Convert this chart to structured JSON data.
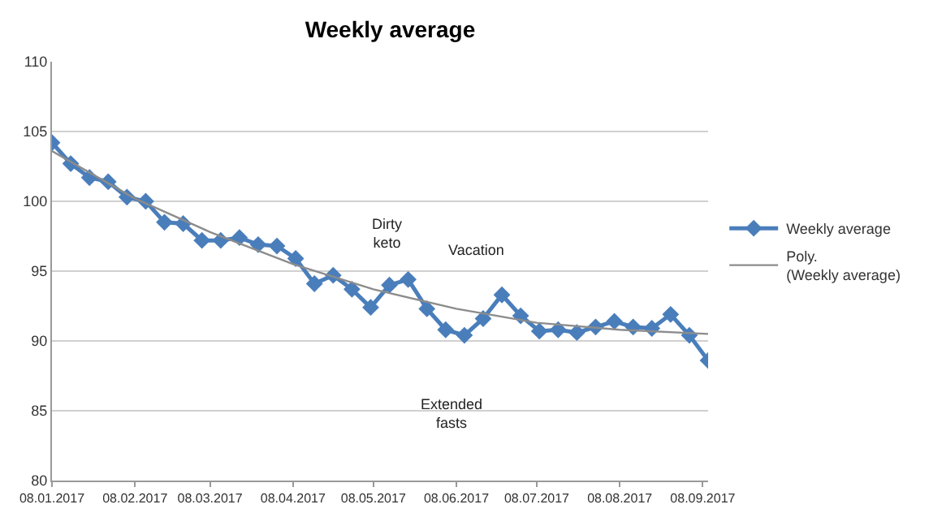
{
  "chart_data": {
    "type": "line",
    "title": "Weekly average",
    "x": [
      "2017-01-08",
      "2017-01-15",
      "2017-01-22",
      "2017-01-29",
      "2017-02-05",
      "2017-02-12",
      "2017-02-19",
      "2017-02-26",
      "2017-03-05",
      "2017-03-12",
      "2017-03-19",
      "2017-03-26",
      "2017-04-02",
      "2017-04-09",
      "2017-04-16",
      "2017-04-23",
      "2017-04-30",
      "2017-05-07",
      "2017-05-14",
      "2017-05-21",
      "2017-05-28",
      "2017-06-04",
      "2017-06-11",
      "2017-06-18",
      "2017-06-25",
      "2017-07-02",
      "2017-07-09",
      "2017-07-16",
      "2017-07-23",
      "2017-07-30",
      "2017-08-06",
      "2017-08-13",
      "2017-08-20",
      "2017-08-27",
      "2017-09-03",
      "2017-09-10"
    ],
    "series": [
      {
        "name": "Weekly average",
        "color": "#4a7ebb",
        "marker": "diamond",
        "values": [
          104.2,
          102.7,
          101.7,
          101.4,
          100.3,
          100.0,
          98.5,
          98.4,
          97.2,
          97.2,
          97.4,
          96.9,
          96.8,
          95.9,
          94.1,
          94.7,
          93.7,
          92.4,
          94.0,
          94.4,
          92.3,
          90.8,
          90.4,
          91.6,
          93.3,
          91.8,
          90.7,
          90.8,
          90.6,
          91.0,
          91.4,
          91.0,
          90.9,
          91.9,
          90.4,
          88.6
        ]
      },
      {
        "name": "Poly. (Weekly average)",
        "color": "#8c8c8c",
        "marker": "none",
        "x": [
          "2017-01-08",
          "2017-02-08",
          "2017-03-08",
          "2017-04-08",
          "2017-05-08",
          "2017-06-08",
          "2017-07-08",
          "2017-08-08",
          "2017-09-10"
        ],
        "values": [
          103.6,
          100.2,
          97.8,
          95.5,
          93.7,
          92.3,
          91.3,
          90.8,
          90.5
        ]
      }
    ],
    "xlim": [
      "2017-01-08",
      "2017-09-10"
    ],
    "xticks": [
      {
        "value": "2017-01-08",
        "label": "08.01.2017"
      },
      {
        "value": "2017-02-08",
        "label": "08.02.2017"
      },
      {
        "value": "2017-03-08",
        "label": "08.03.2017"
      },
      {
        "value": "2017-04-08",
        "label": "08.04.2017"
      },
      {
        "value": "2017-05-08",
        "label": "08.05.2017"
      },
      {
        "value": "2017-06-08",
        "label": "08.06.2017"
      },
      {
        "value": "2017-07-08",
        "label": "08.07.2017"
      },
      {
        "value": "2017-08-08",
        "label": "08.08.2017"
      },
      {
        "value": "2017-09-08",
        "label": "08.09.2017"
      }
    ],
    "ylim": [
      80,
      110
    ],
    "yticks": [
      80,
      85,
      90,
      95,
      100,
      105,
      110
    ],
    "grid": "y",
    "legend": "right",
    "annotations": [
      "Dirty keto",
      "Vacation",
      "Extended fasts"
    ]
  }
}
